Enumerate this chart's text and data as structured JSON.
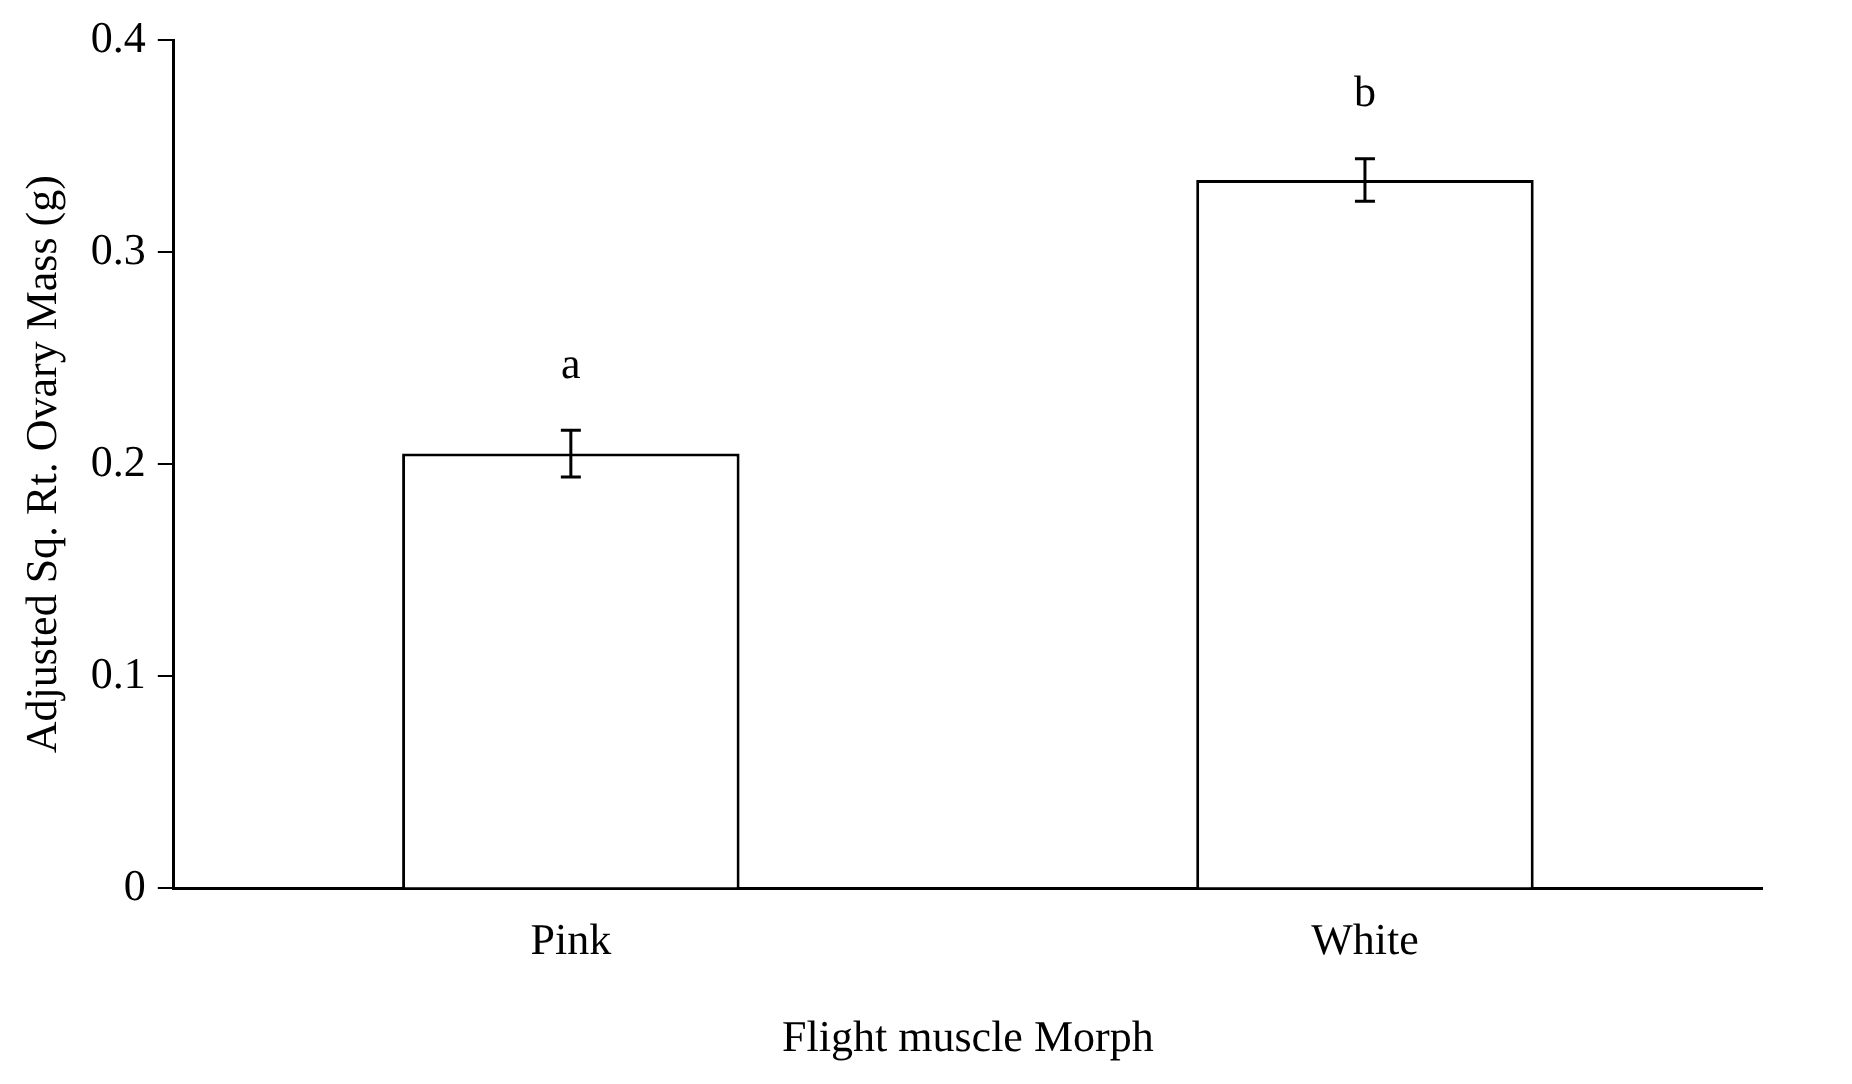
{
  "chart_data": {
    "type": "bar",
    "categories": [
      "Pink",
      "White"
    ],
    "values": [
      0.205,
      0.334
    ],
    "errors": [
      0.011,
      0.01
    ],
    "color": "#ffffff",
    "xlabel": "Flight muscle Morph",
    "ylabel": "Adjusted Sq. Rt. Ovary Mass (g)",
    "ylim": [
      0,
      0.4
    ],
    "yticks": [
      0,
      0.1,
      0.2,
      0.3,
      0.4
    ],
    "grid": false,
    "legend": false,
    "annotations": [
      "a",
      "b"
    ]
  }
}
